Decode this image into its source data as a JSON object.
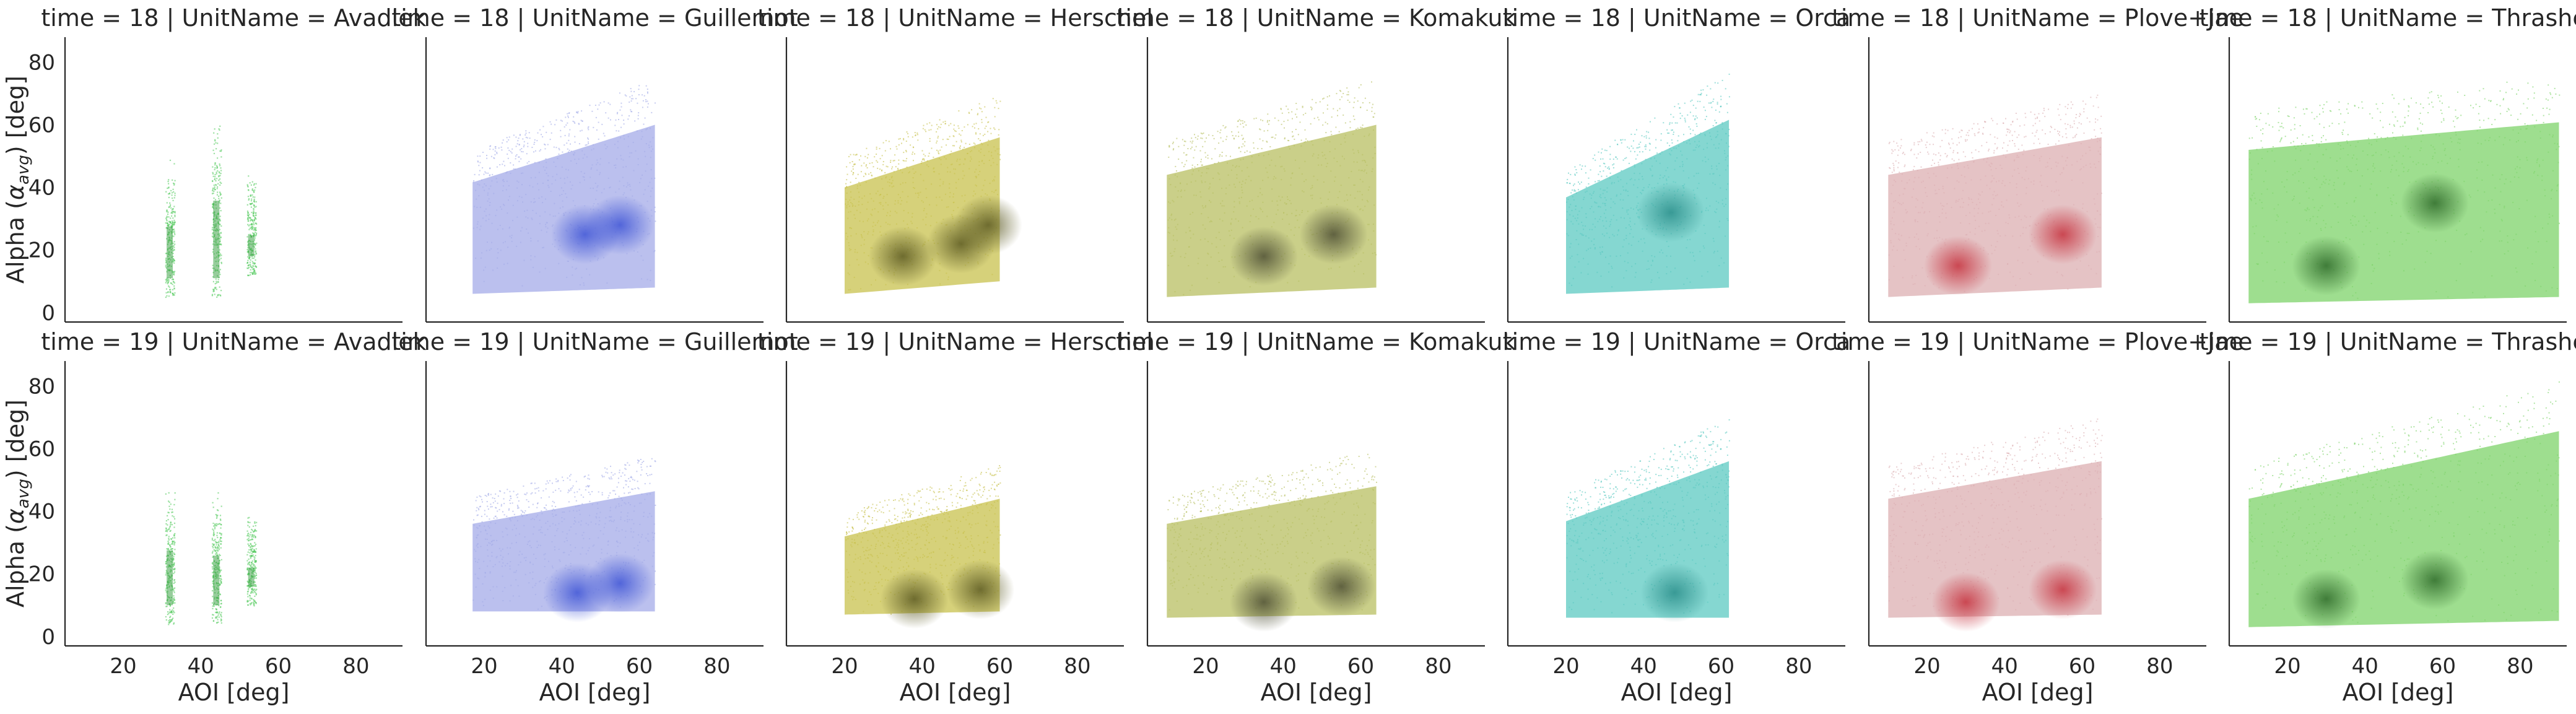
{
  "chart_data": {
    "type": "scatter",
    "layout": "facet-grid",
    "row_variable": "time",
    "col_variable": "UnitName",
    "rows": [
      "18",
      "19"
    ],
    "cols": [
      "Avadlek",
      "Guillemot",
      "Herschel",
      "Komakuk",
      "Orca",
      "Plove+Jae",
      "Thrasher"
    ],
    "facet_title_template": "time = {row} | UnitName = {col}",
    "xlabel": "AOI [deg]",
    "ylabel_prefix": "Alpha (",
    "ylabel_symbol": "α",
    "ylabel_subscript": "avg",
    "ylabel_suffix": ") [deg]",
    "xlim": [
      5,
      92
    ],
    "ylim": [
      -3,
      88
    ],
    "xticks": [
      20,
      40,
      60,
      80
    ],
    "yticks": [
      0,
      20,
      40,
      60,
      80
    ],
    "grid": false,
    "legend": "none",
    "colors": {
      "Avadlek": "#4fc95a",
      "Guillemot": "#a4abe8",
      "Herschel": "#c8c24e",
      "Komakuk": "#b8bf62",
      "Orca": "#5cc9c2",
      "Plove+Jae": "#dcafb2",
      "Thrasher": "#7ed36a"
    },
    "dense_colors": {
      "Avadlek": "#2f9c3a",
      "Guillemot": "#3f55d6",
      "Herschel": "#5c5a22",
      "Komakuk": "#4e4f34",
      "Orca": "#2b8f8b",
      "Plove+Jae": "#c6323e",
      "Thrasher": "#2f6b2a"
    },
    "panels": [
      {
        "row": "18",
        "col": "Avadlek",
        "x_range": [
          31,
          55
        ],
        "y_low": [
          5,
          5
        ],
        "y_high": [
          52,
          48
        ],
        "clusters": [
          {
            "x": 32,
            "lo": 5,
            "hi": 50
          },
          {
            "x": 44,
            "lo": 5,
            "hi": 65
          },
          {
            "x": 53,
            "lo": 12,
            "hi": 45
          }
        ]
      },
      {
        "row": "18",
        "col": "Guillemot",
        "x_range": [
          17,
          64
        ],
        "y_low": [
          6,
          8
        ],
        "y_high": [
          52,
          75
        ],
        "hot": [
          {
            "x": 46,
            "y": 25
          },
          {
            "x": 55,
            "y": 28
          }
        ]
      },
      {
        "row": "18",
        "col": "Herschel",
        "x_range": [
          20,
          60
        ],
        "y_low": [
          6,
          10
        ],
        "y_high": [
          50,
          70
        ],
        "hot": [
          {
            "x": 35,
            "y": 18
          },
          {
            "x": 50,
            "y": 22
          },
          {
            "x": 57,
            "y": 28
          }
        ]
      },
      {
        "row": "18",
        "col": "Komakuk",
        "x_range": [
          10,
          64
        ],
        "y_low": [
          5,
          8
        ],
        "y_high": [
          55,
          75
        ],
        "hot": [
          {
            "x": 35,
            "y": 18
          },
          {
            "x": 53,
            "y": 25
          }
        ]
      },
      {
        "row": "18",
        "col": "Orca",
        "x_range": [
          20,
          62
        ],
        "y_low": [
          6,
          8
        ],
        "y_high": [
          46,
          77
        ],
        "hot": [
          {
            "x": 47,
            "y": 32
          }
        ]
      },
      {
        "row": "18",
        "col": "Plove+Jae",
        "x_range": [
          10,
          65
        ],
        "y_low": [
          5,
          8
        ],
        "y_high": [
          55,
          70
        ],
        "hot": [
          {
            "x": 28,
            "y": 15
          },
          {
            "x": 55,
            "y": 25
          }
        ]
      },
      {
        "row": "18",
        "col": "Thrasher",
        "x_range": [
          10,
          90
        ],
        "y_low": [
          3,
          5
        ],
        "y_high": [
          65,
          76
        ],
        "hot": [
          {
            "x": 30,
            "y": 15
          },
          {
            "x": 58,
            "y": 35
          }
        ]
      },
      {
        "row": "19",
        "col": "Avadlek",
        "x_range": [
          31,
          55
        ],
        "y_low": [
          4,
          4
        ],
        "y_high": [
          50,
          40
        ],
        "clusters": [
          {
            "x": 32,
            "lo": 4,
            "hi": 50
          },
          {
            "x": 44,
            "lo": 4,
            "hi": 47
          },
          {
            "x": 53,
            "lo": 10,
            "hi": 40
          }
        ]
      },
      {
        "row": "19",
        "col": "Guillemot",
        "x_range": [
          17,
          64
        ],
        "y_low": [
          8,
          8
        ],
        "y_high": [
          45,
          58
        ],
        "hot": [
          {
            "x": 44,
            "y": 14
          },
          {
            "x": 55,
            "y": 17
          }
        ]
      },
      {
        "row": "19",
        "col": "Herschel",
        "x_range": [
          20,
          60
        ],
        "y_low": [
          7,
          8
        ],
        "y_high": [
          40,
          55
        ],
        "hot": [
          {
            "x": 38,
            "y": 12
          },
          {
            "x": 55,
            "y": 15
          }
        ]
      },
      {
        "row": "19",
        "col": "Komakuk",
        "x_range": [
          10,
          64
        ],
        "y_low": [
          6,
          7
        ],
        "y_high": [
          45,
          60
        ],
        "hot": [
          {
            "x": 35,
            "y": 11
          },
          {
            "x": 55,
            "y": 16
          }
        ]
      },
      {
        "row": "19",
        "col": "Orca",
        "x_range": [
          20,
          62
        ],
        "y_low": [
          6,
          6
        ],
        "y_high": [
          46,
          70
        ],
        "hot": [
          {
            "x": 48,
            "y": 14
          }
        ]
      },
      {
        "row": "19",
        "col": "Plove+Jae",
        "x_range": [
          10,
          65
        ],
        "y_low": [
          6,
          7
        ],
        "y_high": [
          55,
          70
        ],
        "hot": [
          {
            "x": 30,
            "y": 11
          },
          {
            "x": 55,
            "y": 15
          }
        ]
      },
      {
        "row": "19",
        "col": "Thrasher",
        "x_range": [
          10,
          90
        ],
        "y_low": [
          3,
          5
        ],
        "y_high": [
          55,
          82
        ],
        "hot": [
          {
            "x": 30,
            "y": 12
          },
          {
            "x": 58,
            "y": 18
          }
        ]
      }
    ]
  }
}
